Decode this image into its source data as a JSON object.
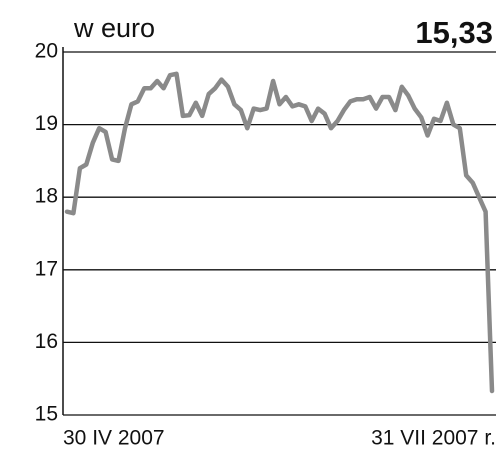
{
  "chart_data": {
    "type": "line",
    "title": "w euro",
    "annotation": "15,33",
    "categories": [
      "30 IV 2007",
      null,
      null,
      null,
      null,
      null,
      null,
      null,
      null,
      null,
      null,
      null,
      null,
      null,
      null,
      null,
      null,
      null,
      null,
      null,
      null,
      null,
      null,
      null,
      null,
      null,
      null,
      null,
      null,
      null,
      null,
      null,
      null,
      null,
      null,
      null,
      null,
      null,
      null,
      null,
      null,
      null,
      null,
      null,
      null,
      null,
      null,
      null,
      null,
      null,
      null,
      null,
      null,
      null,
      null,
      null,
      null,
      null,
      null,
      null,
      null,
      null,
      null,
      null,
      null,
      null,
      "31 VII 2007 r."
    ],
    "series": [
      {
        "name": null,
        "color": "#8a8a8a",
        "values": [
          17.8,
          17.78,
          18.4,
          18.45,
          18.75,
          18.95,
          18.9,
          18.52,
          18.5,
          18.95,
          19.28,
          19.32,
          19.5,
          19.5,
          19.6,
          19.5,
          19.68,
          19.7,
          19.12,
          19.13,
          19.3,
          19.12,
          19.42,
          19.5,
          19.62,
          19.52,
          19.28,
          19.2,
          18.95,
          19.22,
          19.2,
          19.22,
          19.6,
          19.28,
          19.38,
          19.25,
          19.28,
          19.25,
          19.05,
          19.22,
          19.15,
          18.95,
          19.05,
          19.2,
          19.32,
          19.35,
          19.35,
          19.38,
          19.22,
          19.38,
          19.38,
          19.2,
          19.52,
          19.4,
          19.22,
          19.1,
          18.85,
          19.08,
          19.05,
          19.3,
          19.0,
          18.95,
          18.3,
          18.2,
          18.0,
          17.8,
          15.33
        ]
      }
    ],
    "ylim": [
      15,
      20
    ],
    "yticks": [
      15,
      16,
      17,
      18,
      19,
      20
    ],
    "grid": true
  }
}
